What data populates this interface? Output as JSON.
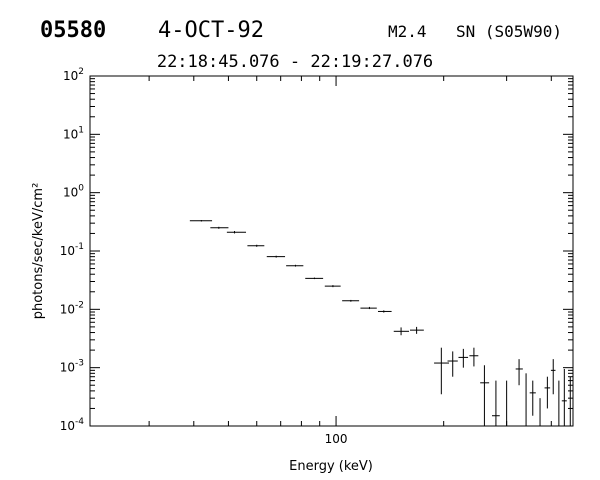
{
  "header": {
    "event_id": "05580",
    "date": "4-OCT-92",
    "class": "M2.4",
    "location": "SN (S05W90)",
    "time_range": "22:18:45.076 - 22:19:27.076"
  },
  "chart_data": {
    "type": "scatter",
    "xlabel": "Energy (keV)",
    "ylabel": "photons/sec/keV/cm²",
    "xscale": "log",
    "yscale": "log",
    "xlim": [
      20.5,
      460
    ],
    "ylim": [
      0.0001,
      100
    ],
    "x_ticklabels": [
      "100"
    ],
    "y_ticks": [
      {
        "base": "10",
        "exp": "-4"
      },
      {
        "base": "10",
        "exp": "-3"
      },
      {
        "base": "10",
        "exp": "-2"
      },
      {
        "base": "10",
        "exp": "-1"
      },
      {
        "base": "10",
        "exp": "0"
      },
      {
        "base": "10",
        "exp": "1"
      },
      {
        "base": "10",
        "exp": "2"
      }
    ],
    "grid": false,
    "series": [
      {
        "points": [
          {
            "x": 42,
            "xlo": 39,
            "xhi": 45,
            "y": 0.33,
            "ylo": 0.32,
            "yhi": 0.34
          },
          {
            "x": 47,
            "xlo": 44.5,
            "xhi": 50,
            "y": 0.25,
            "ylo": 0.24,
            "yhi": 0.26
          },
          {
            "x": 52,
            "xlo": 49.5,
            "xhi": 56,
            "y": 0.21,
            "ylo": 0.2,
            "yhi": 0.22
          },
          {
            "x": 60,
            "xlo": 56.5,
            "xhi": 63,
            "y": 0.123,
            "ylo": 0.118,
            "yhi": 0.128
          },
          {
            "x": 68,
            "xlo": 64,
            "xhi": 72,
            "y": 0.08,
            "ylo": 0.077,
            "yhi": 0.083
          },
          {
            "x": 77,
            "xlo": 72.5,
            "xhi": 81,
            "y": 0.056,
            "ylo": 0.054,
            "yhi": 0.058
          },
          {
            "x": 87,
            "xlo": 82,
            "xhi": 92,
            "y": 0.034,
            "ylo": 0.033,
            "yhi": 0.035
          },
          {
            "x": 98,
            "xlo": 93,
            "xhi": 103,
            "y": 0.025,
            "ylo": 0.024,
            "yhi": 0.026
          },
          {
            "x": 110,
            "xlo": 104,
            "xhi": 116,
            "y": 0.014,
            "ylo": 0.0135,
            "yhi": 0.0145
          },
          {
            "x": 124,
            "xlo": 117,
            "xhi": 130,
            "y": 0.0105,
            "ylo": 0.0101,
            "yhi": 0.011
          },
          {
            "x": 136,
            "xlo": 131,
            "xhi": 143,
            "y": 0.0092,
            "ylo": 0.0088,
            "yhi": 0.0096
          },
          {
            "x": 152,
            "xlo": 145,
            "xhi": 160,
            "y": 0.0042,
            "ylo": 0.0036,
            "yhi": 0.0049
          },
          {
            "x": 168,
            "xlo": 161,
            "xhi": 176,
            "y": 0.0044,
            "ylo": 0.0038,
            "yhi": 0.005
          },
          {
            "x": 197,
            "xlo": 188,
            "xhi": 207,
            "y": 0.0012,
            "ylo": 0.00035,
            "yhi": 0.0022
          },
          {
            "x": 212,
            "xlo": 205,
            "xhi": 219,
            "y": 0.0013,
            "ylo": 0.0007,
            "yhi": 0.0019
          },
          {
            "x": 227,
            "xlo": 220,
            "xhi": 234,
            "y": 0.0015,
            "ylo": 0.001,
            "yhi": 0.0021
          },
          {
            "x": 243,
            "xlo": 236,
            "xhi": 250,
            "y": 0.0016,
            "ylo": 0.00105,
            "yhi": 0.0022
          },
          {
            "x": 260,
            "xlo": 253,
            "xhi": 268,
            "y": 0.00055,
            "ylo": 0.0001,
            "yhi": 0.0011
          },
          {
            "x": 280,
            "xlo": 273,
            "xhi": 287,
            "y": 0.00015,
            "ylo": 0.0001,
            "yhi": 0.0006
          },
          {
            "x": 300,
            "xlo": 293,
            "xhi": 307,
            "y": 0.0001,
            "ylo": 0.0001,
            "yhi": 0.0006
          },
          {
            "x": 325,
            "xlo": 318,
            "xhi": 333,
            "y": 0.00095,
            "ylo": 0.0005,
            "yhi": 0.0014
          },
          {
            "x": 340,
            "xlo": 335,
            "xhi": 346,
            "y": 0.0001,
            "ylo": 0.0001,
            "yhi": 0.0008
          },
          {
            "x": 355,
            "xlo": 348,
            "xhi": 362,
            "y": 0.00037,
            "ylo": 0.00015,
            "yhi": 0.0006
          },
          {
            "x": 372,
            "xlo": 366,
            "xhi": 378,
            "y": 0.0001,
            "ylo": 0.0001,
            "yhi": 0.0003
          },
          {
            "x": 390,
            "xlo": 383,
            "xhi": 397,
            "y": 0.00045,
            "ylo": 0.0002,
            "yhi": 0.0007
          },
          {
            "x": 405,
            "xlo": 399,
            "xhi": 411,
            "y": 0.0009,
            "ylo": 0.00035,
            "yhi": 0.0014
          },
          {
            "x": 420,
            "xlo": 414,
            "xhi": 426,
            "y": 0.0001,
            "ylo": 0.0001,
            "yhi": 0.0006
          },
          {
            "x": 435,
            "xlo": 428,
            "xhi": 442,
            "y": 0.00027,
            "ylo": 0.0001,
            "yhi": 0.00095
          },
          {
            "x": 452,
            "xlo": 447,
            "xhi": 457,
            "y": 0.0001,
            "ylo": 0.0001,
            "yhi": 0.0007
          }
        ]
      }
    ]
  }
}
